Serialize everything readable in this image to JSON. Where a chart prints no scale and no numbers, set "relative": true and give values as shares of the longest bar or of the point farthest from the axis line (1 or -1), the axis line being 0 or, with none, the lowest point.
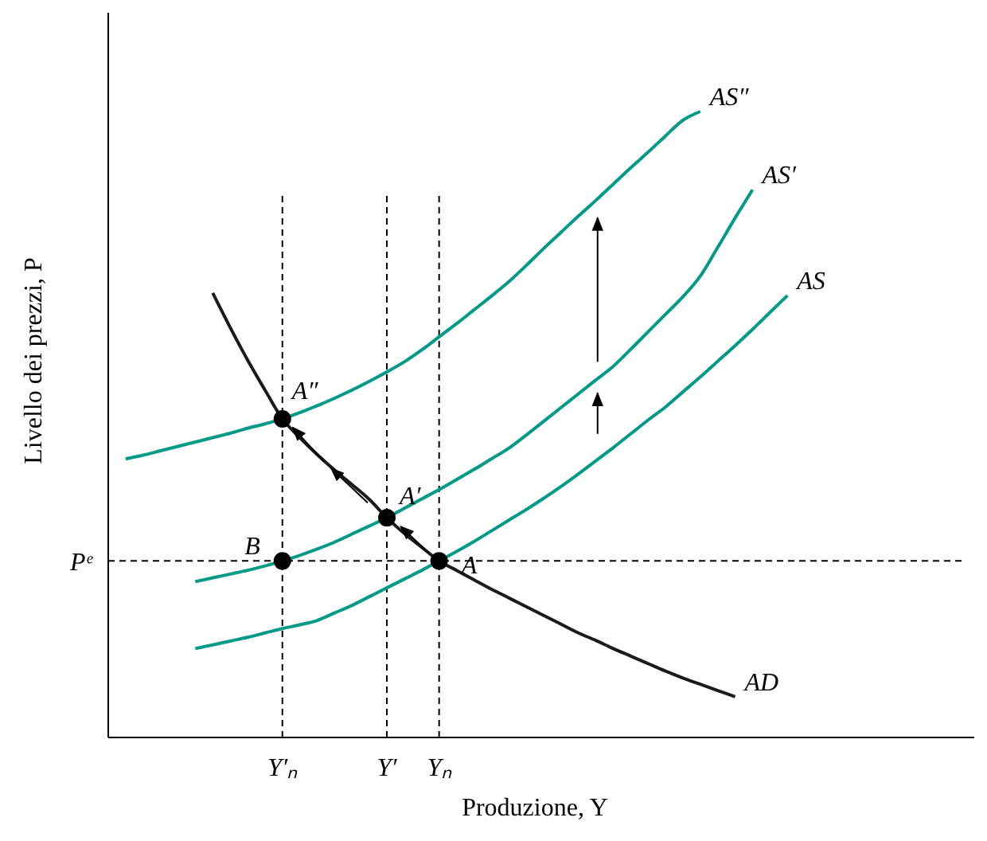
{
  "chart_data": {
    "type": "line",
    "relative": true,
    "xlabel": "Produzione, Y",
    "ylabel": "Livello dei prezzi, P",
    "categories": [
      null,
      null,
      null,
      null,
      null,
      null,
      null,
      null,
      null,
      null,
      "Y′ₙ",
      null,
      null,
      null,
      null,
      null,
      "Y′",
      null,
      null,
      "Yₙ",
      null,
      null,
      null,
      null,
      null,
      null,
      null,
      null,
      null,
      null,
      null,
      null,
      null,
      null,
      null,
      null,
      null,
      null,
      null,
      null,
      null,
      null,
      null,
      null,
      null,
      null,
      null,
      null,
      null,
      null
    ],
    "series": [
      {
        "name": "AS",
        "color": "#009a87",
        "values": [
          null,
          null,
          null,
          null,
          null,
          0.142,
          0.148,
          0.154,
          0.16,
          0.167,
          0.174,
          0.18,
          0.187,
          0.199,
          0.211,
          0.225,
          0.239,
          0.253,
          0.267,
          0.282,
          0.297,
          0.313,
          0.33,
          0.347,
          0.364,
          0.382,
          0.401,
          0.421,
          0.442,
          0.463,
          0.485,
          0.507,
          0.528,
          0.552,
          0.576,
          0.601,
          0.626,
          0.652,
          0.679,
          0.706,
          null,
          null,
          null,
          null,
          null,
          null,
          null,
          null,
          null,
          null
        ]
      },
      {
        "name": "AS′",
        "color": "#009a87",
        "values": [
          null,
          null,
          null,
          null,
          null,
          0.249,
          0.255,
          0.261,
          0.267,
          0.274,
          0.282,
          0.291,
          0.301,
          0.312,
          0.325,
          0.338,
          0.351,
          0.366,
          0.381,
          0.396,
          0.412,
          0.428,
          0.445,
          0.462,
          0.483,
          0.505,
          0.527,
          0.549,
          0.571,
          0.593,
          0.62,
          0.648,
          0.676,
          0.704,
          0.737,
          0.783,
          0.83,
          0.875,
          null,
          null,
          null,
          null,
          null,
          null,
          null,
          null,
          null,
          null,
          null,
          null
        ]
      },
      {
        "name": "AS″",
        "color": "#009a87",
        "values": [
          null,
          0.445,
          0.451,
          0.458,
          0.465,
          0.472,
          0.479,
          0.486,
          0.494,
          0.501,
          0.509,
          0.519,
          0.53,
          0.542,
          0.555,
          0.569,
          0.584,
          0.6,
          0.619,
          0.64,
          0.661,
          0.683,
          0.705,
          0.728,
          0.754,
          0.781,
          0.807,
          0.833,
          0.858,
          0.884,
          0.91,
          0.935,
          0.961,
          0.986,
          1,
          null,
          null,
          null,
          null,
          null,
          null,
          null,
          null,
          null,
          null,
          null,
          null,
          null,
          null,
          null
        ]
      },
      {
        "name": "AD",
        "color": "#1a1a1a",
        "values": [
          null,
          null,
          null,
          null,
          null,
          null,
          0.71,
          0.655,
          0.603,
          0.555,
          0.509,
          0.479,
          0.452,
          0.427,
          0.404,
          0.38,
          0.351,
          0.326,
          0.304,
          0.282,
          0.267,
          0.252,
          0.237,
          0.223,
          0.209,
          0.195,
          0.181,
          0.167,
          0.155,
          0.142,
          0.13,
          0.118,
          0.106,
          0.095,
          0.085,
          0.075,
          0.065,
          null,
          null,
          null,
          null,
          null,
          null,
          null,
          null,
          null,
          null,
          null,
          null,
          null
        ]
      },
      {
        "type": "scatter",
        "marker": "circle",
        "color": "#000000",
        "x": [
          "Yₙ",
          "Y′ₙ",
          "Y′",
          "Y′ₙ"
        ],
        "values": [
          0.282,
          0.282,
          0.351,
          0.509
        ]
      }
    ],
    "ref_lines": [
      {
        "axis": "y",
        "value": 0.282,
        "label": "Pᵉ",
        "line_style": "dashed",
        "color": "#000000"
      },
      {
        "axis": "x",
        "value": "Y′ₙ",
        "line_style": "dashed",
        "color": "#000000"
      },
      {
        "axis": "x",
        "value": "Y′",
        "line_style": "dashed",
        "color": "#000000"
      },
      {
        "axis": "x",
        "value": "Yₙ",
        "line_style": "dashed",
        "color": "#000000"
      }
    ],
    "annotations": [
      "A",
      "B",
      "A′",
      "A″"
    ]
  }
}
